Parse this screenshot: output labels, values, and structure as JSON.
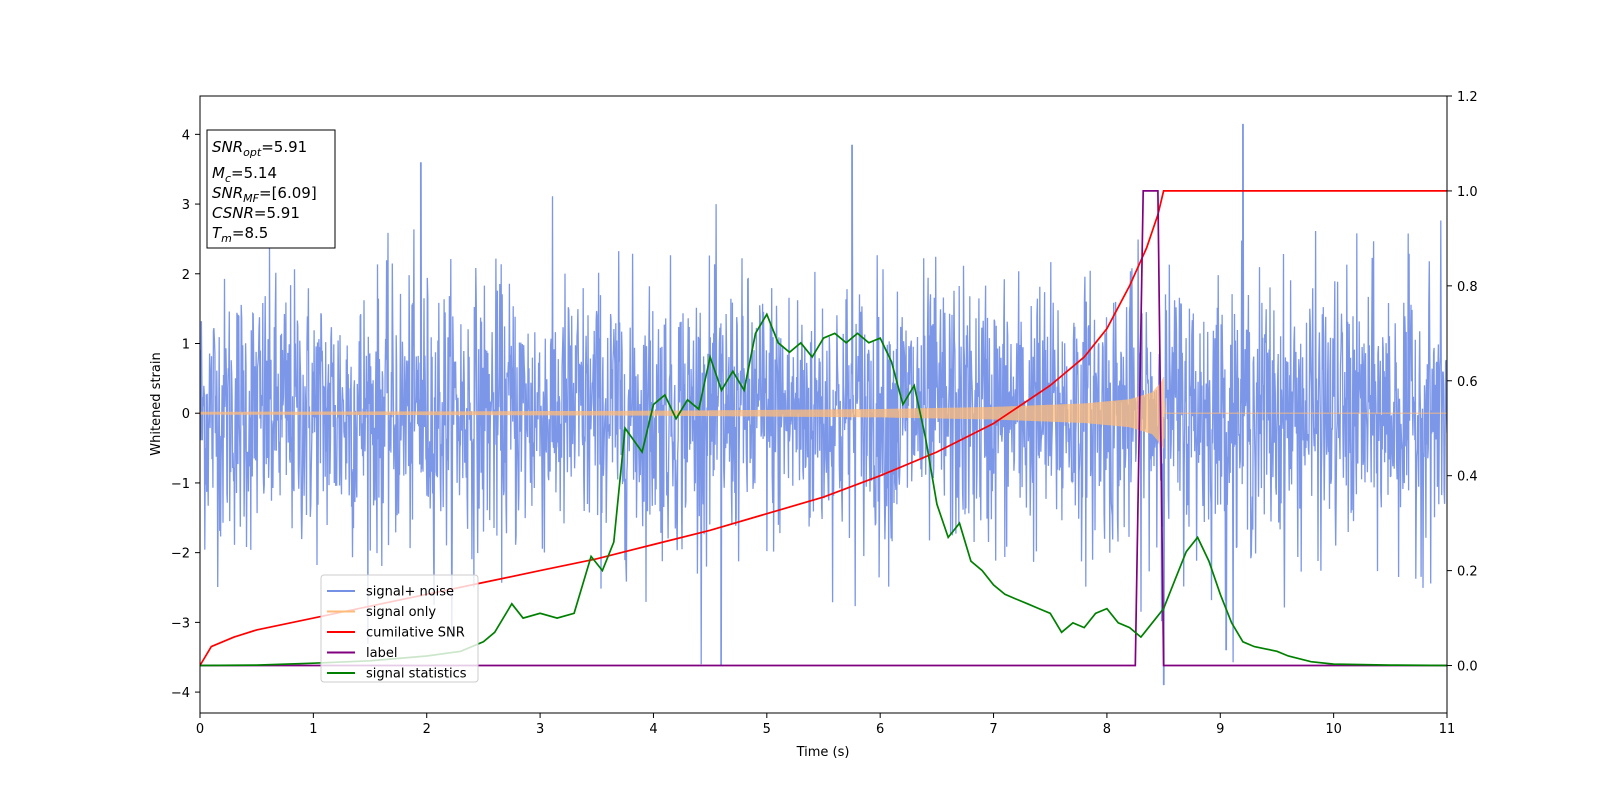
{
  "chart_data": {
    "type": "line",
    "xlabel": "Time (s)",
    "ylabel": "Whitened strain",
    "xlim": [
      0,
      11
    ],
    "ylim": [
      -4.3,
      4.55
    ],
    "y2lim": [
      -0.1,
      1.2
    ],
    "x_ticks": [
      0,
      1,
      2,
      3,
      4,
      5,
      6,
      7,
      8,
      9,
      10,
      11
    ],
    "y_ticks": [
      -4,
      -3,
      -2,
      -1,
      0,
      1,
      2,
      3,
      4
    ],
    "y2_ticks": [
      "0.0",
      "0.2",
      "0.4",
      "0.6",
      "0.8",
      "1.0",
      "1.2"
    ],
    "grid": false,
    "legend_position": "lower-left",
    "info_box": {
      "snr_opt": {
        "main": "SNR",
        "sub": "opt",
        "value": "=5.91"
      },
      "mc": {
        "main": "M",
        "sub": "c",
        "value": "=5.14"
      },
      "snr_mf": {
        "main": "SNR",
        "sub": "MF",
        "value": "=[6.09]"
      },
      "csnr": {
        "main": "CSNR",
        "value": "=5.91"
      },
      "tm": {
        "main": "T",
        "sub": "m",
        "value": "=8.5"
      }
    },
    "series": [
      {
        "name": "signal+ noise",
        "axis": "left",
        "color": "#7591e6",
        "kind": "noise",
        "std": 0.95,
        "range": [
          -3.9,
          4.2
        ],
        "notable_points": [
          [
            1.95,
            3.6
          ],
          [
            4.6,
            -3.62
          ],
          [
            5.75,
            3.85
          ],
          [
            9.2,
            4.15
          ],
          [
            8.5,
            -3.9
          ],
          [
            9.05,
            -3.4
          ]
        ]
      },
      {
        "name": "signal only",
        "axis": "left",
        "color": "#ffbb78",
        "kind": "chirp",
        "envelope_points": [
          [
            0,
            0.02
          ],
          [
            2,
            0.025
          ],
          [
            4,
            0.035
          ],
          [
            6,
            0.06
          ],
          [
            7,
            0.09
          ],
          [
            7.8,
            0.14
          ],
          [
            8.2,
            0.2
          ],
          [
            8.4,
            0.3
          ],
          [
            8.48,
            0.45
          ],
          [
            8.5,
            0.52
          ],
          [
            8.51,
            0.0
          ],
          [
            11,
            0.0
          ]
        ]
      },
      {
        "name": "cumilative SNR",
        "axis": "right",
        "color": "#ff0000",
        "points": [
          [
            0,
            0.0
          ],
          [
            0.1,
            0.04
          ],
          [
            0.3,
            0.06
          ],
          [
            0.5,
            0.075
          ],
          [
            1,
            0.1
          ],
          [
            1.5,
            0.125
          ],
          [
            2,
            0.15
          ],
          [
            2.5,
            0.175
          ],
          [
            3,
            0.2
          ],
          [
            3.5,
            0.225
          ],
          [
            4,
            0.255
          ],
          [
            4.5,
            0.285
          ],
          [
            5,
            0.32
          ],
          [
            5.5,
            0.355
          ],
          [
            6,
            0.4
          ],
          [
            6.5,
            0.45
          ],
          [
            7,
            0.51
          ],
          [
            7.5,
            0.59
          ],
          [
            7.8,
            0.65
          ],
          [
            8,
            0.71
          ],
          [
            8.2,
            0.8
          ],
          [
            8.35,
            0.88
          ],
          [
            8.45,
            0.95
          ],
          [
            8.5,
            1.0
          ],
          [
            11,
            1.0
          ]
        ]
      },
      {
        "name": "label",
        "axis": "right",
        "color": "#800080",
        "points": [
          [
            0,
            0.0
          ],
          [
            8.25,
            0.0
          ],
          [
            8.32,
            1.0
          ],
          [
            8.45,
            1.0
          ],
          [
            8.5,
            0.0
          ],
          [
            11,
            0.0
          ]
        ]
      },
      {
        "name": "signal statistics",
        "axis": "right",
        "color": "#008000",
        "points": [
          [
            0,
            0.0
          ],
          [
            0.5,
            0.001
          ],
          [
            1.0,
            0.005
          ],
          [
            1.5,
            0.01
          ],
          [
            2.0,
            0.02
          ],
          [
            2.3,
            0.03
          ],
          [
            2.5,
            0.05
          ],
          [
            2.6,
            0.07
          ],
          [
            2.75,
            0.13
          ],
          [
            2.85,
            0.1
          ],
          [
            3.0,
            0.11
          ],
          [
            3.15,
            0.1
          ],
          [
            3.3,
            0.11
          ],
          [
            3.45,
            0.23
          ],
          [
            3.55,
            0.2
          ],
          [
            3.65,
            0.26
          ],
          [
            3.75,
            0.5
          ],
          [
            3.9,
            0.45
          ],
          [
            4.0,
            0.55
          ],
          [
            4.1,
            0.57
          ],
          [
            4.2,
            0.52
          ],
          [
            4.3,
            0.56
          ],
          [
            4.4,
            0.54
          ],
          [
            4.5,
            0.65
          ],
          [
            4.6,
            0.58
          ],
          [
            4.7,
            0.62
          ],
          [
            4.8,
            0.58
          ],
          [
            4.9,
            0.7
          ],
          [
            5.0,
            0.74
          ],
          [
            5.1,
            0.68
          ],
          [
            5.2,
            0.66
          ],
          [
            5.3,
            0.68
          ],
          [
            5.4,
            0.65
          ],
          [
            5.5,
            0.69
          ],
          [
            5.6,
            0.7
          ],
          [
            5.7,
            0.68
          ],
          [
            5.8,
            0.7
          ],
          [
            5.9,
            0.68
          ],
          [
            6.0,
            0.69
          ],
          [
            6.1,
            0.64
          ],
          [
            6.2,
            0.55
          ],
          [
            6.3,
            0.59
          ],
          [
            6.4,
            0.48
          ],
          [
            6.5,
            0.34
          ],
          [
            6.6,
            0.27
          ],
          [
            6.7,
            0.3
          ],
          [
            6.8,
            0.22
          ],
          [
            6.9,
            0.2
          ],
          [
            7.0,
            0.17
          ],
          [
            7.1,
            0.15
          ],
          [
            7.2,
            0.14
          ],
          [
            7.3,
            0.13
          ],
          [
            7.4,
            0.12
          ],
          [
            7.5,
            0.11
          ],
          [
            7.6,
            0.07
          ],
          [
            7.7,
            0.09
          ],
          [
            7.8,
            0.08
          ],
          [
            7.9,
            0.11
          ],
          [
            8.0,
            0.12
          ],
          [
            8.1,
            0.09
          ],
          [
            8.2,
            0.08
          ],
          [
            8.3,
            0.06
          ],
          [
            8.4,
            0.09
          ],
          [
            8.5,
            0.12
          ],
          [
            8.6,
            0.18
          ],
          [
            8.7,
            0.24
          ],
          [
            8.8,
            0.27
          ],
          [
            8.9,
            0.22
          ],
          [
            9.0,
            0.15
          ],
          [
            9.1,
            0.09
          ],
          [
            9.2,
            0.05
          ],
          [
            9.3,
            0.04
          ],
          [
            9.4,
            0.035
          ],
          [
            9.5,
            0.03
          ],
          [
            9.6,
            0.02
          ],
          [
            9.8,
            0.008
          ],
          [
            10.0,
            0.003
          ],
          [
            10.5,
            0.001
          ],
          [
            11,
            0.0
          ]
        ]
      }
    ]
  }
}
